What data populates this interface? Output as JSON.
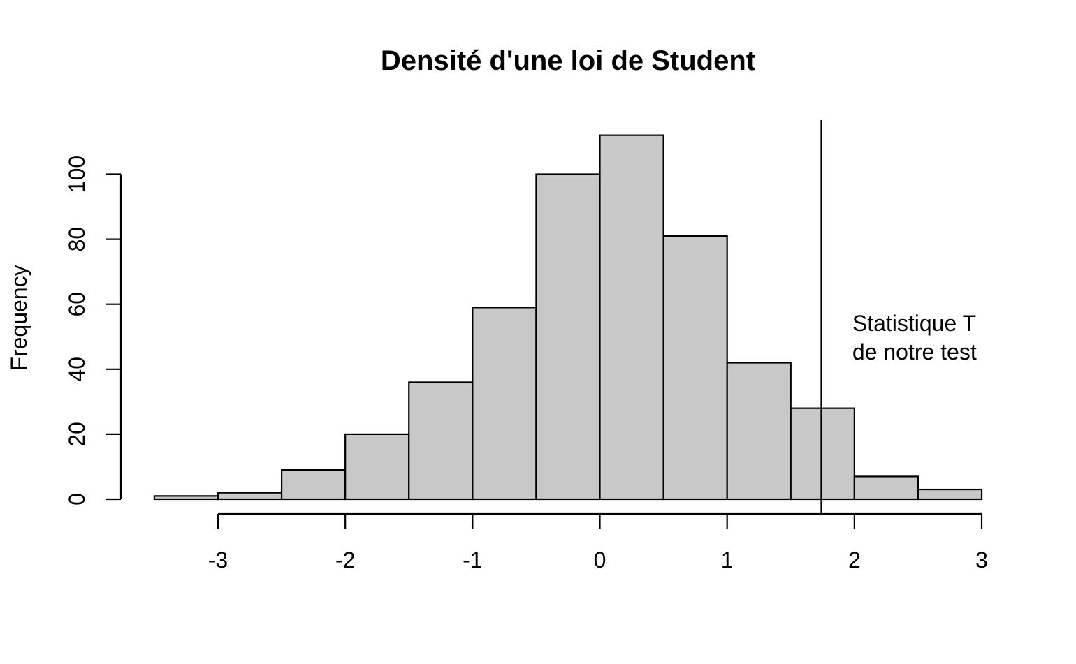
{
  "chart_data": {
    "type": "bar",
    "title": "Densité d'une loi de Student",
    "xlabel": "",
    "ylabel": "Frequency",
    "bins": [
      {
        "x0": -3.5,
        "x1": -3.0,
        "count": 1
      },
      {
        "x0": -3.0,
        "x1": -2.5,
        "count": 2
      },
      {
        "x0": -2.5,
        "x1": -2.0,
        "count": 9
      },
      {
        "x0": -2.0,
        "x1": -1.5,
        "count": 20
      },
      {
        "x0": -1.5,
        "x1": -1.0,
        "count": 36
      },
      {
        "x0": -1.0,
        "x1": -0.5,
        "count": 59
      },
      {
        "x0": -0.5,
        "x1": 0.0,
        "count": 100
      },
      {
        "x0": 0.0,
        "x1": 0.5,
        "count": 112
      },
      {
        "x0": 0.5,
        "x1": 1.0,
        "count": 81
      },
      {
        "x0": 1.0,
        "x1": 1.5,
        "count": 42
      },
      {
        "x0": 1.5,
        "x1": 2.0,
        "count": 28
      },
      {
        "x0": 2.0,
        "x1": 2.5,
        "count": 7
      },
      {
        "x0": 2.5,
        "x1": 3.0,
        "count": 3
      }
    ],
    "xticks": [
      "-3",
      "-2",
      "-1",
      "0",
      "1",
      "2",
      "3"
    ],
    "xtick_values": [
      -3,
      -2,
      -1,
      0,
      1,
      2,
      3
    ],
    "yticks": [
      "0",
      "20",
      "40",
      "60",
      "80",
      "100"
    ],
    "ytick_values": [
      0,
      20,
      40,
      60,
      80,
      100
    ],
    "xlim": [
      -3.77,
      3.25
    ],
    "ylim": [
      0,
      116
    ],
    "vline": {
      "x": 1.74
    },
    "annotation": {
      "lines": [
        "Statistique T",
        "de notre test"
      ],
      "x": 2.0
    },
    "bar_fill": "#c8c8c8",
    "bar_stroke": "#000000",
    "grid": false,
    "legend": "none"
  }
}
